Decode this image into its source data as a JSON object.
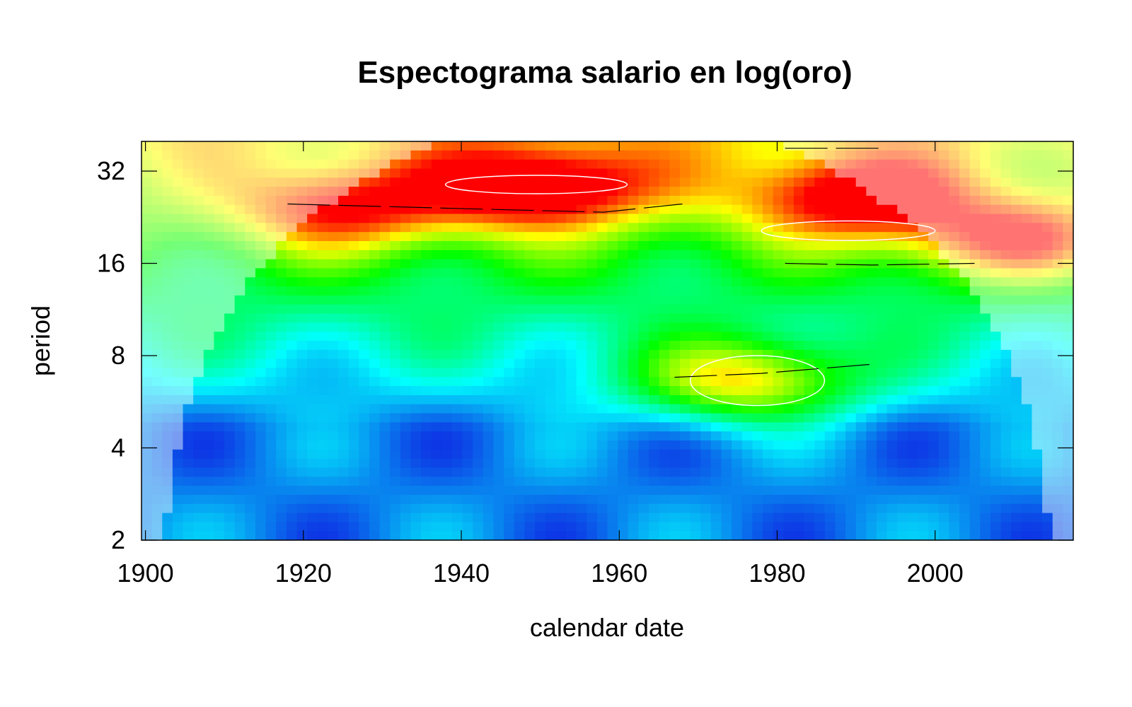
{
  "chart_data": {
    "type": "heatmap",
    "title": "Espectograma salario en log(oro)",
    "xlabel": "calendar date",
    "ylabel": "period",
    "x_ticks": [
      1900,
      1920,
      1940,
      1960,
      1980,
      2000
    ],
    "y_ticks": [
      2,
      4,
      8,
      16,
      32
    ],
    "y_scale": "log2",
    "xlim": [
      1899.5,
      2017.5
    ],
    "ylim": [
      2,
      40
    ],
    "color_scale": [
      "#1010e0",
      "#00ffff",
      "#00ff00",
      "#ffff00",
      "#ff0000"
    ],
    "cone_of_influence": true,
    "power_peaks": [
      {
        "x": 1950,
        "period": 28,
        "level": 1.0
      },
      {
        "x": 1990,
        "period": 26,
        "level": 0.9
      },
      {
        "x": 1976,
        "period": 6.6,
        "level": 1.0
      },
      {
        "x": 1925,
        "period": 24,
        "level": 0.75
      },
      {
        "x": 2010,
        "period": 19,
        "level": 0.8
      }
    ],
    "significance_contours": [
      {
        "x_range": [
          1969,
          1986
        ],
        "period_range": [
          5.5,
          8
        ]
      },
      {
        "x_range": [
          1938,
          1961
        ],
        "period_range": [
          27,
          31
        ]
      },
      {
        "x_range": [
          1978,
          2000
        ],
        "period_range": [
          19,
          22
        ]
      }
    ],
    "ridges": [
      {
        "x": [
          1918,
          1944,
          1958,
          1968
        ],
        "period": [
          25,
          24,
          23.5,
          25
        ]
      },
      {
        "x": [
          1981,
          1992,
          2005
        ],
        "period": [
          16,
          15.8,
          16
        ]
      },
      {
        "x": [
          1967,
          1978,
          1992
        ],
        "period": [
          6.8,
          7,
          7.5
        ]
      },
      {
        "x": [
          1981,
          1993
        ],
        "period": [
          38,
          38
        ]
      }
    ]
  }
}
